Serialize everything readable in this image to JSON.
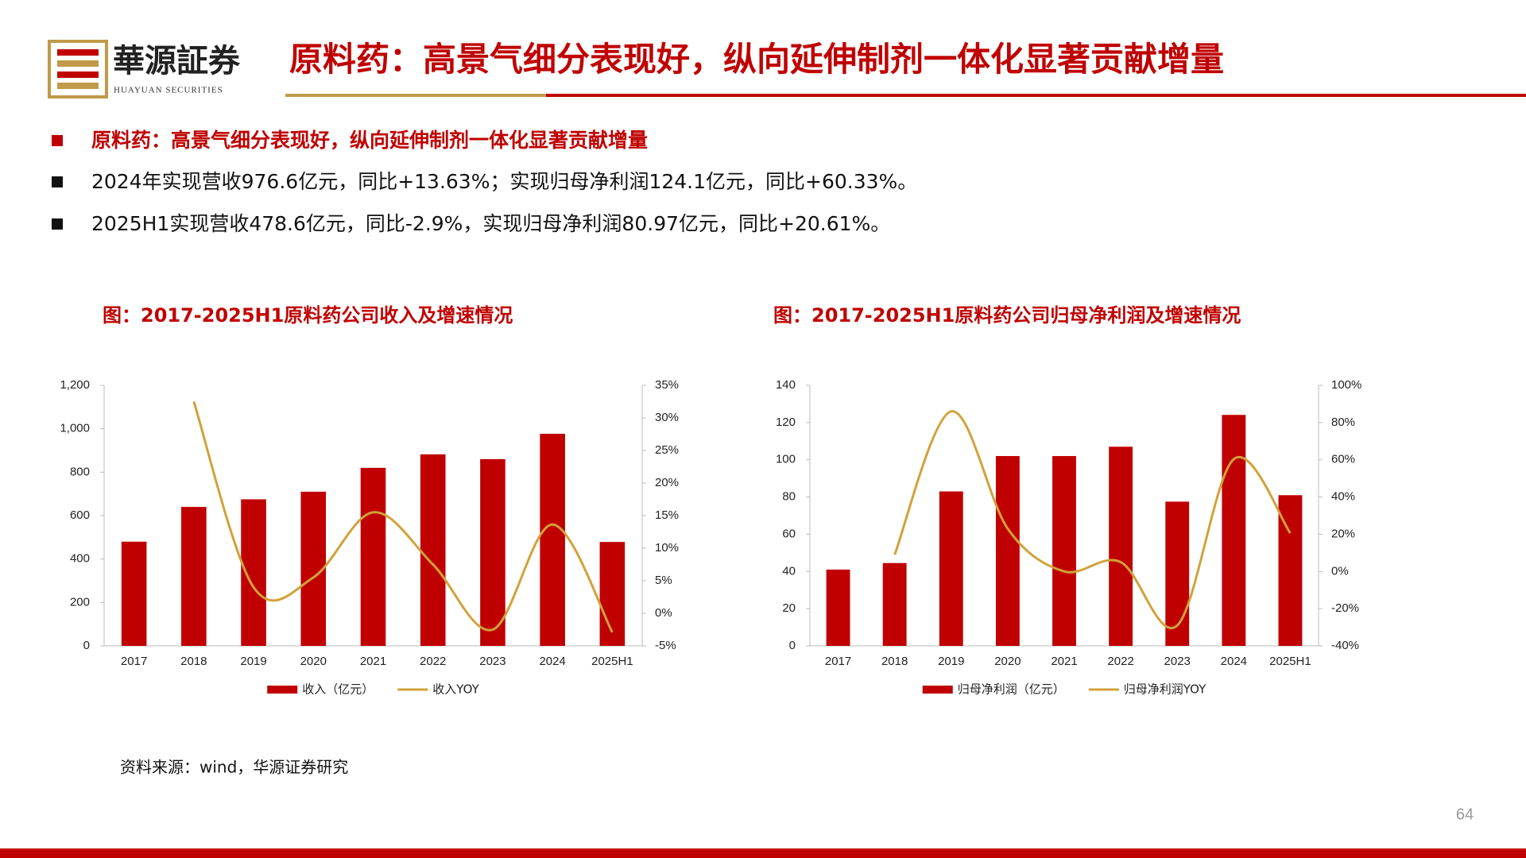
{
  "header": {
    "logo_text": "華源証券",
    "logo_subtitle": "HUAYUAN SECURITIES",
    "title": "原料药：高景气细分表现好，纵向延伸制剂一体化显著贡献增量"
  },
  "bullets": [
    "原料药：高景气细分表现好，纵向延伸制剂一体化显著贡献增量",
    "2024年实现营收976.6亿元，同比+13.63%；实现归母净利润124.1亿元，同比+60.33%。",
    "2025H1实现营收478.6亿元，同比-2.9%，实现归母净利润80.97亿元，同比+20.61%。"
  ],
  "chart_data": [
    {
      "type": "bar",
      "title": "图：2017-2025H1原料药公司收入及增速情况",
      "categories": [
        "2017",
        "2018",
        "2019",
        "2020",
        "2021",
        "2022",
        "2023",
        "2024",
        "2025H1"
      ],
      "series": [
        {
          "name": "收入（亿元）",
          "color": "#C00000",
          "values": [
            480,
            640,
            675,
            710,
            820,
            882,
            860,
            976.6,
            478.6
          ]
        },
        {
          "name": "收入YOY",
          "type": "line",
          "axis": "y2",
          "color": "#D1A23A",
          "values": [
            null,
            32.5,
            4,
            5.5,
            15.5,
            7.5,
            -2.5,
            13.63,
            -2.9
          ]
        }
      ],
      "ylim": [
        0,
        1200
      ],
      "yticks": [
        0,
        200,
        400,
        600,
        800,
        {
          "value": 1000,
          "label": "1,000"
        },
        {
          "value": 1200,
          "label": "1,200"
        }
      ],
      "y2lim": [
        -5,
        35
      ],
      "y2ticks": [
        {
          "value": -5,
          "label": "-5%"
        },
        {
          "value": 0,
          "label": "0%"
        },
        {
          "value": 5,
          "label": "5%"
        },
        {
          "value": 10,
          "label": "10%"
        },
        {
          "value": 15,
          "label": "15%"
        },
        {
          "value": 20,
          "label": "20%"
        },
        {
          "value": 25,
          "label": "25%"
        },
        {
          "value": 30,
          "label": "30%"
        },
        {
          "value": 35,
          "label": "35%"
        }
      ],
      "grid": false,
      "legend": "bottom"
    },
    {
      "type": "bar",
      "title": "图：2017-2025H1原料药公司归母净利润及增速情况",
      "categories": [
        "2017",
        "2018",
        "2019",
        "2020",
        "2021",
        "2022",
        "2023",
        "2024",
        "2025H1"
      ],
      "series": [
        {
          "name": "归母净利润（亿元）",
          "color": "#C00000",
          "values": [
            41,
            44.5,
            83,
            102,
            102,
            107,
            77.5,
            124.1,
            80.97
          ]
        },
        {
          "name": "归母净利润YOY",
          "type": "line",
          "axis": "y2",
          "color": "#D1A23A",
          "values": [
            null,
            9,
            86,
            23,
            0,
            5,
            -29,
            60.33,
            20.61
          ]
        }
      ],
      "ylim": [
        0,
        140
      ],
      "yticks": [
        0,
        20,
        40,
        60,
        80,
        100,
        120,
        140
      ],
      "y2lim": [
        -40,
        100
      ],
      "y2ticks": [
        {
          "value": -40,
          "label": "-40%"
        },
        {
          "value": -20,
          "label": "-20%"
        },
        {
          "value": 0,
          "label": "0%"
        },
        {
          "value": 20,
          "label": "20%"
        },
        {
          "value": 40,
          "label": "40%"
        },
        {
          "value": 60,
          "label": "60%"
        },
        {
          "value": 80,
          "label": "80%"
        },
        {
          "value": 100,
          "label": "100%"
        }
      ],
      "grid": false,
      "legend": "bottom"
    }
  ],
  "source": "资料来源：wind，华源证券研究",
  "page_number": 64
}
